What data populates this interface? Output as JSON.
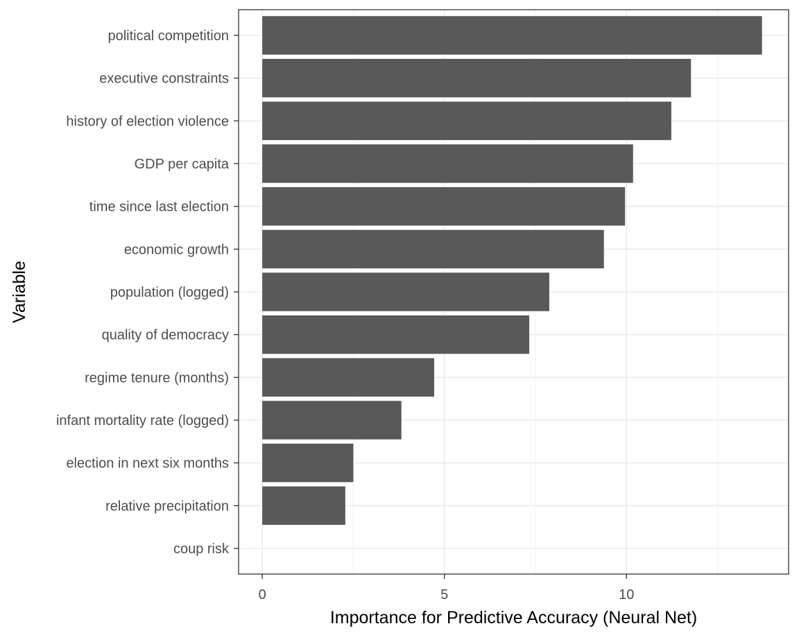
{
  "chart_data": {
    "type": "bar",
    "orientation": "horizontal",
    "xlabel": "Importance for Predictive Accuracy (Neural Net)",
    "ylabel": "Variable",
    "xlim": [
      -0.65,
      14.45
    ],
    "x_ticks": [
      0,
      5,
      10
    ],
    "x_tick_labels": [
      "0",
      "5",
      "10"
    ],
    "grid": true,
    "bar_color": "#595959",
    "categories": [
      "political competition",
      "executive constraints",
      "history of election violence",
      "GDP per capita",
      "time since last election",
      "economic growth",
      "population (logged)",
      "quality of democracy",
      "regime tenure (months)",
      "infant mortality rate (logged)",
      "election in next six months",
      "relative precipitation",
      "coup risk"
    ],
    "values": [
      13.72,
      11.77,
      11.23,
      10.18,
      9.96,
      9.38,
      7.88,
      7.33,
      4.72,
      3.82,
      2.5,
      2.28,
      0
    ]
  }
}
